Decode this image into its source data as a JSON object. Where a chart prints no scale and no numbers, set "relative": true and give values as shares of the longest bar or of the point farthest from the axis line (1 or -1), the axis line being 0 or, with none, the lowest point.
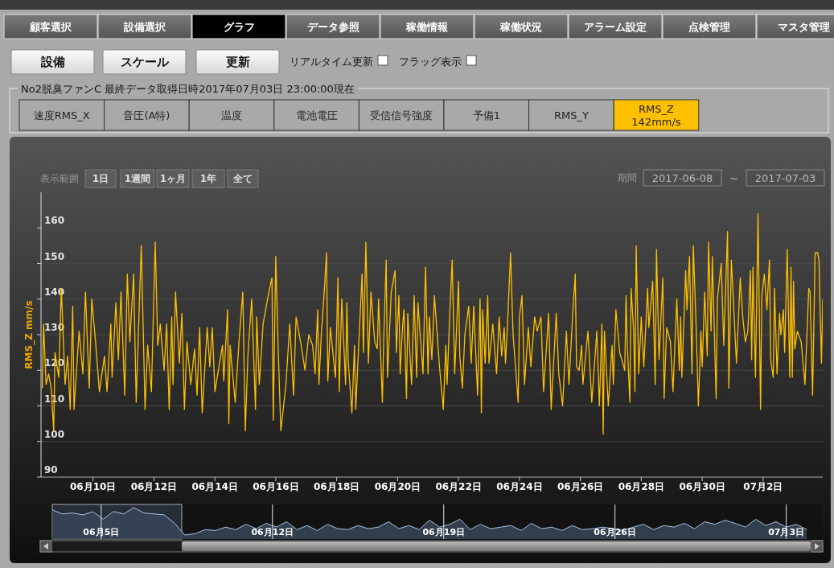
{
  "chart_data": [
    {
      "type": "line",
      "color": "#ffc000",
      "ylabel": "RMS_Z mm/s",
      "grid": "y",
      "xlim": [
        "2017-06-08T07:00",
        "2017-07-03T23:00"
      ],
      "ylim": [
        90,
        170
      ],
      "yticks": [
        90,
        100,
        110,
        120,
        130,
        140,
        150,
        160
      ],
      "xticks": [
        {
          "value": "2017-06-10",
          "label": "06月10日"
        },
        {
          "value": "2017-06-12",
          "label": "06月12日"
        },
        {
          "value": "2017-06-14",
          "label": "06月14日"
        },
        {
          "value": "2017-06-16",
          "label": "06月16日"
        },
        {
          "value": "2017-06-18",
          "label": "06月18日"
        },
        {
          "value": "2017-06-20",
          "label": "06月20日"
        },
        {
          "value": "2017-06-22",
          "label": "06月22日"
        },
        {
          "value": "2017-06-24",
          "label": "06月24日"
        },
        {
          "value": "2017-06-26",
          "label": "06月26日"
        },
        {
          "value": "2017-06-28",
          "label": "06月28日"
        },
        {
          "value": "2017-06-30",
          "label": "06月30日"
        },
        {
          "value": "2017-07-02",
          "label": "07月2日"
        }
      ],
      "annotations": [
        "顧客選択",
        "設備選択",
        "グラフ",
        "データ参照",
        "稼働情報",
        "稼働状況",
        "アラーム設定",
        "点検管理",
        "マスタ管理",
        "設備",
        "スケール",
        "更新",
        "リアルタイム更新",
        "フラッグ表示",
        "No2脱臭ファンC 最終データ取得日時2017年07月03日 23:00:00現在",
        "速度RMS_X",
        "音圧(A特)",
        "温度",
        "電池電圧",
        "受信信号強度",
        "予備1",
        "RMS_Y",
        "RMS_Z\n142mm/s",
        "表示範囲",
        "1日",
        "1週間",
        "1ヶ月",
        "1年",
        "全て",
        "期間",
        "2017-06-08",
        "~",
        "2017-07-03"
      ],
      "x": [
        "2017-06-08T08:00",
        "2017-06-08T09:00",
        "2017-06-08T11:00",
        "2017-06-08T13:00",
        "2017-06-08T15:00",
        "2017-06-08T17:00",
        "2017-06-08T18:00",
        "2017-06-08T21:00",
        "2017-06-08T23:00",
        "2017-06-09T02:00",
        "2017-06-09T04:00",
        "2017-06-09T06:00",
        "2017-06-09T08:00",
        "2017-06-09T09:00",
        "2017-06-09T13:00",
        "2017-06-09T16:00",
        "2017-06-09T18:00",
        "2017-06-09T21:00",
        "2017-06-09T23:00",
        "2017-06-10T02:00",
        "2017-06-10T05:00",
        "2017-06-10T09:00",
        "2017-06-10T11:00",
        "2017-06-10T14:00",
        "2017-06-10T15:00",
        "2017-06-10T18:00",
        "2017-06-10T20:00",
        "2017-06-10T22:00",
        "2017-06-11T01:00",
        "2017-06-11T03:00",
        "2017-06-11T05:00",
        "2017-06-11T08:00",
        "2017-06-11T10:00",
        "2017-06-11T14:00",
        "2017-06-11T17:00",
        "2017-06-11T19:00",
        "2017-06-11T22:00",
        "2017-06-12T01:00",
        "2017-06-12T03:00",
        "2017-06-12T05:00",
        "2017-06-12T08:00",
        "2017-06-12T10:00",
        "2017-06-12T12:00",
        "2017-06-12T14:00",
        "2017-06-12T15:00",
        "2017-06-12T17:00",
        "2017-06-12T20:00",
        "2017-06-12T22:00",
        "2017-06-13T00:00",
        "2017-06-13T02:00",
        "2017-06-13T05:00",
        "2017-06-13T08:00",
        "2017-06-13T10:00",
        "2017-06-13T12:00",
        "2017-06-13T14:00",
        "2017-06-13T18:00",
        "2017-06-13T20:00",
        "2017-06-13T22:00",
        "2017-06-14T00:00",
        "2017-06-14T06:00",
        "2017-06-14T07:00",
        "2017-06-14T10:00",
        "2017-06-14T11:00",
        "2017-06-14T12:00",
        "2017-06-14T16:00",
        "2017-06-14T19:00",
        "2017-06-14T22:00",
        "2017-06-15T00:00",
        "2017-06-15T02:00",
        "2017-06-15T05:00",
        "2017-06-15T08:00",
        "2017-06-15T09:00",
        "2017-06-15T11:00",
        "2017-06-15T14:00",
        "2017-06-15T18:00",
        "2017-06-15T21:00",
        "2017-06-15T22:00",
        "2017-06-16T00:00",
        "2017-06-16T02:00",
        "2017-06-16T04:00",
        "2017-06-16T08:00",
        "2017-06-16T11:00",
        "2017-06-16T14:00",
        "2017-06-16T16:00",
        "2017-06-16T20:00",
        "2017-06-16T23:00",
        "2017-06-17T02:00",
        "2017-06-17T05:00",
        "2017-06-17T07:00",
        "2017-06-17T09:00",
        "2017-06-17T10:00",
        "2017-06-17T12:00",
        "2017-06-17T14:00",
        "2017-06-17T16:00",
        "2017-06-17T17:00",
        "2017-06-17T19:00",
        "2017-06-17T23:00",
        "2017-06-18T01:00",
        "2017-06-18T02:00",
        "2017-06-18T04:00",
        "2017-06-18T07:00",
        "2017-06-18T08:00",
        "2017-06-18T09:00",
        "2017-06-18T12:00",
        "2017-06-18T14:00",
        "2017-06-18T15:00",
        "2017-06-18T18:00",
        "2017-06-18T20:00",
        "2017-06-18T21:00",
        "2017-06-18T23:00",
        "2017-06-19T01:00",
        "2017-06-19T03:00",
        "2017-06-19T06:00",
        "2017-06-19T08:00",
        "2017-06-19T09:00",
        "2017-06-19T12:00",
        "2017-06-19T13:00",
        "2017-06-19T15:00",
        "2017-06-19T16:00",
        "2017-06-19T19:00",
        "2017-06-19T22:00",
        "2017-06-19T23:00",
        "2017-06-20T01:00",
        "2017-06-20T02:00",
        "2017-06-20T04:00",
        "2017-06-20T05:00",
        "2017-06-20T07:00",
        "2017-06-20T08:00",
        "2017-06-20T11:00",
        "2017-06-20T13:00",
        "2017-06-20T15:00",
        "2017-06-20T16:00",
        "2017-06-20T20:00",
        "2017-06-20T22:00",
        "2017-06-21T00:00",
        "2017-06-21T01:00",
        "2017-06-21T03:00",
        "2017-06-21T05:00",
        "2017-06-21T09:00",
        "2017-06-21T12:00",
        "2017-06-21T14:00",
        "2017-06-21T15:00",
        "2017-06-21T17:00",
        "2017-06-21T19:00",
        "2017-06-21T21:00",
        "2017-06-22T00:00",
        "2017-06-22T01:00",
        "2017-06-22T03:00",
        "2017-06-22T05:00",
        "2017-06-22T08:00",
        "2017-06-22T10:00",
        "2017-06-22T12:00",
        "2017-06-22T15:00",
        "2017-06-22T17:00",
        "2017-06-22T18:00",
        "2017-06-22T19:00",
        "2017-06-22T21:00",
        "2017-06-22T23:00",
        "2017-06-23T00:00",
        "2017-06-23T03:00",
        "2017-06-23T06:00",
        "2017-06-23T08:00",
        "2017-06-23T10:00",
        "2017-06-23T12:00",
        "2017-06-23T13:00",
        "2017-06-23T15:00",
        "2017-06-23T17:00",
        "2017-06-23T19:00",
        "2017-06-23T23:00",
        "2017-06-24T00:00",
        "2017-06-24T02:00",
        "2017-06-24T04:00",
        "2017-06-24T07:00",
        "2017-06-24T09:00",
        "2017-06-24T12:00",
        "2017-06-24T14:00",
        "2017-06-24T17:00",
        "2017-06-24T19:00",
        "2017-06-24T23:00",
        "2017-06-25T01:00",
        "2017-06-25T05:00",
        "2017-06-25T07:00",
        "2017-06-25T10:00",
        "2017-06-25T13:00",
        "2017-06-25T15:00",
        "2017-06-25T18:00",
        "2017-06-25T20:00",
        "2017-06-25T21:00",
        "2017-06-25T23:00",
        "2017-06-26T01:00",
        "2017-06-26T02:00",
        "2017-06-26T06:00",
        "2017-06-26T09:00",
        "2017-06-26T13:00",
        "2017-06-26T15:00",
        "2017-06-26T17:00",
        "2017-06-26T18:00",
        "2017-06-26T19:00",
        "2017-06-26T22:00",
        "2017-06-27T01:00",
        "2017-06-27T02:00",
        "2017-06-27T04:00",
        "2017-06-27T07:00",
        "2017-06-27T11:00",
        "2017-06-27T12:00",
        "2017-06-27T13:00",
        "2017-06-27T15:00",
        "2017-06-27T16:00",
        "2017-06-27T18:00",
        "2017-06-27T19:00",
        "2017-06-27T20:00",
        "2017-06-27T22:00",
        "2017-06-28T00:00",
        "2017-06-28T02:00",
        "2017-06-28T05:00",
        "2017-06-28T06:00",
        "2017-06-28T09:00",
        "2017-06-28T11:00",
        "2017-06-28T12:00",
        "2017-06-28T14:00",
        "2017-06-28T17:00",
        "2017-06-28T18:00",
        "2017-06-28T20:00",
        "2017-06-28T23:00",
        "2017-06-29T01:00",
        "2017-06-29T04:00",
        "2017-06-29T06:00",
        "2017-06-29T07:00",
        "2017-06-29T08:00",
        "2017-06-29T11:00",
        "2017-06-29T12:00",
        "2017-06-29T14:00",
        "2017-06-29T16:00",
        "2017-06-29T17:00",
        "2017-06-29T19:00",
        "2017-06-29T21:00",
        "2017-06-29T23:00",
        "2017-06-30T00:00",
        "2017-06-30T02:00",
        "2017-06-30T04:00",
        "2017-06-30T05:00",
        "2017-06-30T07:00",
        "2017-06-30T08:00",
        "2017-06-30T11:00",
        "2017-06-30T12:00",
        "2017-06-30T15:00",
        "2017-06-30T17:00",
        "2017-06-30T20:00",
        "2017-06-30T21:00",
        "2017-06-30T23:00",
        "2017-07-01T03:00",
        "2017-07-01T06:00",
        "2017-07-01T08:00",
        "2017-07-01T10:00",
        "2017-07-01T12:00",
        "2017-07-01T14:00",
        "2017-07-01T15:00",
        "2017-07-01T16:00",
        "2017-07-01T18:00",
        "2017-07-01T20:00",
        "2017-07-01T22:00",
        "2017-07-01T23:00",
        "2017-07-02T01:00",
        "2017-07-02T03:00",
        "2017-07-02T05:00",
        "2017-07-02T06:00",
        "2017-07-02T08:00",
        "2017-07-02T09:00",
        "2017-07-02T11:00",
        "2017-07-02T13:00",
        "2017-07-02T14:00",
        "2017-07-02T16:00",
        "2017-07-02T17:00",
        "2017-07-02T19:00",
        "2017-07-02T21:00",
        "2017-07-02T22:00",
        "2017-07-02T23:00",
        "2017-07-03T00:00",
        "2017-07-03T01:00",
        "2017-07-03T03:00",
        "2017-07-03T06:00",
        "2017-07-03T09:00",
        "2017-07-03T12:00",
        "2017-07-03T13:00",
        "2017-07-03T15:00",
        "2017-07-03T17:00",
        "2017-07-03T19:00",
        "2017-07-03T20:00",
        "2017-07-03T22:00",
        "2017-07-03T23:00"
      ],
      "values": [
        115,
        133,
        116,
        119,
        115,
        103,
        125,
        118,
        143,
        116,
        124,
        109,
        138,
        109,
        131,
        119,
        142,
        115,
        140,
        128,
        114,
        124,
        114,
        133,
        118,
        139,
        123,
        142,
        113,
        147,
        128,
        147,
        111,
        155,
        109,
        127,
        114,
        156,
        127,
        133,
        120,
        133,
        109,
        135,
        116,
        142,
        122,
        136,
        109,
        128,
        116,
        126,
        113,
        132,
        108,
        132,
        121,
        132,
        114,
        127,
        117,
        137,
        105,
        127,
        111,
        128,
        142,
        103,
        124,
        140,
        109,
        135,
        116,
        133,
        141,
        146,
        106,
        152,
        125,
        103,
        116,
        133,
        113,
        135,
        127,
        120,
        130,
        127,
        119,
        137,
        116,
        131,
        141,
        153,
        117,
        132,
        118,
        146,
        114,
        140,
        116,
        139,
        123,
        108,
        127,
        109,
        132,
        147,
        125,
        156,
        122,
        142,
        128,
        126,
        140,
        111,
        128,
        151,
        118,
        142,
        148,
        125,
        141,
        119,
        133,
        137,
        112,
        136,
        116,
        141,
        118,
        139,
        119,
        149,
        119,
        135,
        123,
        141,
        121,
        109,
        127,
        116,
        135,
        151,
        119,
        145,
        124,
        115,
        130,
        138,
        122,
        138,
        113,
        140,
        108,
        137,
        122,
        141,
        122,
        133,
        119,
        135,
        124,
        132,
        122,
        136,
        153,
        130,
        111,
        135,
        141,
        116,
        132,
        121,
        135,
        131,
        135,
        114,
        136,
        109,
        136,
        119,
        110,
        131,
        116,
        136,
        147,
        121,
        120,
        127,
        116,
        131,
        111,
        131,
        110,
        133,
        102,
        131,
        110,
        127,
        116,
        137,
        125,
        120,
        141,
        127,
        111,
        143,
        131,
        114,
        155,
        119,
        135,
        121,
        143,
        132,
        145,
        116,
        154,
        123,
        146,
        112,
        132,
        128,
        114,
        140,
        120,
        135,
        118,
        148,
        137,
        152,
        119,
        155,
        135,
        110,
        131,
        121,
        142,
        124,
        156,
        131,
        152,
        112,
        140,
        150,
        127,
        159,
        115,
        151,
        122,
        146,
        135,
        128,
        131,
        148,
        123,
        149,
        118,
        164,
        109,
        141,
        147,
        137,
        151,
        123,
        118,
        143,
        119,
        136,
        130,
        137,
        125,
        154,
        118,
        149,
        118,
        145,
        126,
        131,
        128,
        116,
        143,
        142,
        113,
        153,
        153,
        151,
        122,
        140
      ]
    },
    {
      "type": "area",
      "relative": true,
      "color": "#a8c4e8",
      "grid": "x",
      "xlim": [
        "2017-06-03T00:00",
        "2017-07-04T11:00"
      ],
      "xticks": [
        {
          "value": "2017-06-05",
          "label": "06月5日"
        },
        {
          "value": "2017-06-12",
          "label": "06月12日"
        },
        {
          "value": "2017-06-19",
          "label": "06月19日"
        },
        {
          "value": "2017-06-26",
          "label": "06月26日"
        },
        {
          "value": "2017-07-03",
          "label": "07月3日"
        }
      ],
      "bands": [
        {
          "axis": "x",
          "from": "2017-06-03T00:00",
          "to": "2017-06-08T07:00",
          "color": "#262d37"
        }
      ],
      "x": [
        "2017-06-03T00:00",
        "2017-06-03T10:00",
        "2017-06-03T20:00",
        "2017-06-04T06:00",
        "2017-06-04T16:00",
        "2017-06-05T02:00",
        "2017-06-05T12:00",
        "2017-06-05T22:00",
        "2017-06-06T08:00",
        "2017-06-06T18:00",
        "2017-06-07T04:00",
        "2017-06-07T14:00",
        "2017-06-08T00:00",
        "2017-06-08T10:00",
        "2017-06-08T20:00",
        "2017-06-09T06:00",
        "2017-06-09T16:00",
        "2017-06-10T02:00",
        "2017-06-10T12:00",
        "2017-06-10T22:00",
        "2017-06-11T08:00",
        "2017-06-11T18:00",
        "2017-06-12T04:00",
        "2017-06-12T14:00",
        "2017-06-13T00:00",
        "2017-06-13T10:00",
        "2017-06-13T20:00",
        "2017-06-14T06:00",
        "2017-06-14T16:00",
        "2017-06-15T02:00",
        "2017-06-15T12:00",
        "2017-06-15T22:00",
        "2017-06-16T08:00",
        "2017-06-16T18:00",
        "2017-06-17T04:00",
        "2017-06-17T14:00",
        "2017-06-18T00:00",
        "2017-06-18T10:00",
        "2017-06-18T20:00",
        "2017-06-19T06:00",
        "2017-06-19T16:00",
        "2017-06-20T02:00",
        "2017-06-20T12:00",
        "2017-06-20T22:00",
        "2017-06-21T08:00",
        "2017-06-21T18:00",
        "2017-06-22T04:00",
        "2017-06-22T14:00",
        "2017-06-23T00:00",
        "2017-06-23T10:00",
        "2017-06-23T20:00",
        "2017-06-24T06:00",
        "2017-06-24T16:00",
        "2017-06-25T02:00",
        "2017-06-25T12:00",
        "2017-06-25T22:00",
        "2017-06-26T08:00",
        "2017-06-26T18:00",
        "2017-06-27T04:00",
        "2017-06-27T14:00",
        "2017-06-28T00:00",
        "2017-06-28T10:00",
        "2017-06-28T20:00",
        "2017-06-29T06:00",
        "2017-06-29T16:00",
        "2017-06-30T02:00",
        "2017-06-30T12:00",
        "2017-06-30T22:00",
        "2017-07-01T08:00",
        "2017-07-01T18:00",
        "2017-07-02T04:00",
        "2017-07-02T14:00",
        "2017-07-03T00:00",
        "2017-07-03T10:00",
        "2017-07-03T20:00"
      ],
      "values": [
        0.93,
        0.8,
        0.83,
        0.77,
        0.87,
        0.63,
        0.88,
        0.8,
        1,
        0.83,
        0.8,
        0.77,
        0.5,
        0.13,
        0.17,
        0.3,
        0.27,
        0.38,
        0.3,
        0.47,
        0.33,
        0.5,
        0.38,
        0.55,
        0.3,
        0.43,
        0.27,
        0.47,
        0.33,
        0.3,
        0.43,
        0.33,
        0.38,
        0.55,
        0.33,
        0.43,
        0.3,
        0.6,
        0.38,
        0.47,
        0.63,
        0.3,
        0.47,
        0.33,
        0.38,
        0.43,
        0.27,
        0.5,
        0.33,
        0.38,
        0.27,
        0.43,
        0.3,
        0.33,
        0.38,
        0.33,
        0.27,
        0.38,
        0.47,
        0.3,
        0.43,
        0.38,
        0.5,
        0.33,
        0.55,
        0.47,
        0.6,
        0.5,
        0.38,
        0.63,
        0.43,
        0.55,
        0.38,
        0.47,
        0.3
      ]
    }
  ]
}
